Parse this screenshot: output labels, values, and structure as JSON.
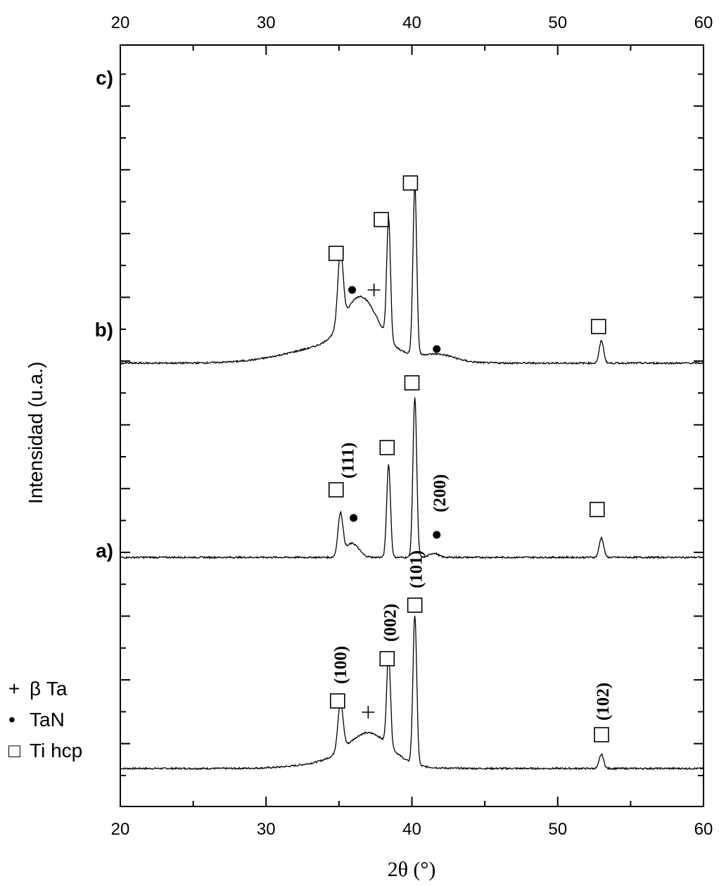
{
  "chart_data": {
    "type": "line",
    "xlabel": "2θ (°)",
    "ylabel": "Intensidad (u.a.)",
    "xlim": [
      20,
      60
    ],
    "x_ticks": [
      20,
      30,
      40,
      50,
      60
    ],
    "y_scale": "arbitrary units, stacked offsets",
    "grid": false,
    "series": [
      {
        "label": "a)",
        "baseline": 0.0,
        "peaks": [
          {
            "x": 35.1,
            "h": 0.17,
            "w": 0.18
          },
          {
            "x": 37.1,
            "h": 0.1,
            "w": 1.4
          },
          {
            "x": 38.4,
            "h": 0.33,
            "w": 0.13
          },
          {
            "x": 40.2,
            "h": 0.53,
            "w": 0.13
          },
          {
            "x": 53.0,
            "h": 0.05,
            "w": 0.15
          }
        ],
        "hump": {
          "x": 35.8,
          "h": 0.03,
          "w": 2.6
        }
      },
      {
        "label": "b)",
        "baseline": 0.75,
        "peaks": [
          {
            "x": 35.1,
            "h": 0.15,
            "w": 0.17
          },
          {
            "x": 35.9,
            "h": 0.05,
            "w": 0.45
          },
          {
            "x": 38.4,
            "h": 0.33,
            "w": 0.13
          },
          {
            "x": 40.2,
            "h": 0.57,
            "w": 0.13
          },
          {
            "x": 41.5,
            "h": 0.015,
            "w": 0.3
          },
          {
            "x": 53.0,
            "h": 0.07,
            "w": 0.15
          }
        ]
      },
      {
        "label": "c)",
        "baseline": 1.44,
        "peaks": [
          {
            "x": 35.1,
            "h": 0.26,
            "w": 0.18
          },
          {
            "x": 36.5,
            "h": 0.17,
            "w": 1.1
          },
          {
            "x": 38.4,
            "h": 0.43,
            "w": 0.13
          },
          {
            "x": 40.2,
            "h": 0.6,
            "w": 0.13
          },
          {
            "x": 53.0,
            "h": 0.08,
            "w": 0.15
          }
        ],
        "hump": {
          "x": 35.5,
          "h": 0.07,
          "w": 3.4
        },
        "hump2": {
          "x": 42.0,
          "h": 0.02,
          "w": 1.0
        }
      }
    ],
    "markers": [
      {
        "series": "c)",
        "symbol": "square",
        "x": 34.8,
        "y": 1.83
      },
      {
        "series": "c)",
        "symbol": "dot",
        "x": 35.9,
        "y": 1.7
      },
      {
        "series": "c)",
        "symbol": "plus",
        "x": 37.4,
        "y": 1.7
      },
      {
        "series": "c)",
        "symbol": "square",
        "x": 37.9,
        "y": 1.95
      },
      {
        "series": "c)",
        "symbol": "square",
        "x": 39.9,
        "y": 2.08
      },
      {
        "series": "c)",
        "symbol": "dot",
        "x": 41.7,
        "y": 1.49
      },
      {
        "series": "c)",
        "symbol": "square",
        "x": 52.8,
        "y": 1.57
      },
      {
        "series": "b)",
        "symbol": "square",
        "x": 34.8,
        "y": 0.99
      },
      {
        "series": "b)",
        "symbol": "dot",
        "x": 36.0,
        "y": 0.89
      },
      {
        "series": "b)",
        "symbol": "square",
        "x": 38.3,
        "y": 1.14
      },
      {
        "series": "b)",
        "symbol": "square",
        "x": 40.0,
        "y": 1.37
      },
      {
        "series": "b)",
        "symbol": "dot",
        "x": 41.7,
        "y": 0.83
      },
      {
        "series": "b)",
        "symbol": "square",
        "x": 52.7,
        "y": 0.92
      },
      {
        "series": "a)",
        "symbol": "square",
        "x": 34.9,
        "y": 0.24
      },
      {
        "series": "a)",
        "symbol": "plus",
        "x": 37.0,
        "y": 0.2
      },
      {
        "series": "a)",
        "symbol": "square",
        "x": 38.3,
        "y": 0.39
      },
      {
        "series": "a)",
        "symbol": "square",
        "x": 40.2,
        "y": 0.58
      },
      {
        "series": "a)",
        "symbol": "square",
        "x": 53.0,
        "y": 0.12
      }
    ],
    "annotations": [
      {
        "text": "(111)",
        "x": 35.6,
        "y": 1.03
      },
      {
        "text": "(200)",
        "x": 41.9,
        "y": 0.91
      },
      {
        "text": "(100)",
        "x": 35.1,
        "y": 0.3
      },
      {
        "text": "(002)",
        "x": 38.5,
        "y": 0.45
      },
      {
        "text": "(101)",
        "x": 40.3,
        "y": 0.64
      },
      {
        "text": "(102)",
        "x": 53.1,
        "y": 0.17
      }
    ],
    "legend": [
      {
        "symbol": "+",
        "label": "β Ta"
      },
      {
        "symbol": "•",
        "label": "TaN"
      },
      {
        "symbol": "□",
        "label": "Ti hcp"
      }
    ],
    "legend_position": "bottom-left"
  }
}
